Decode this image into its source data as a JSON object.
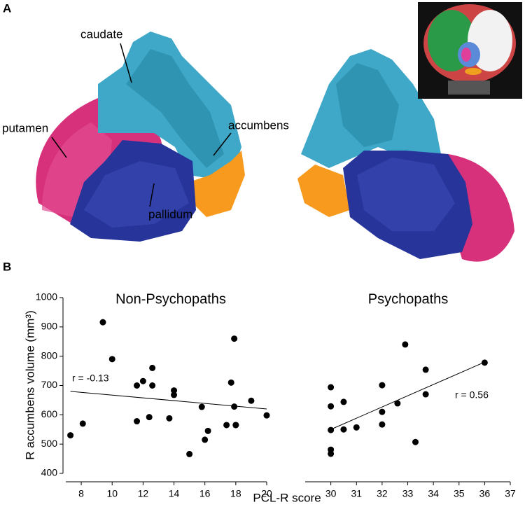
{
  "panels": {
    "A": {
      "label": "A",
      "annotations": [
        "caudate",
        "putamen",
        "accumbens",
        "pallidum"
      ]
    },
    "B": {
      "label": "B"
    }
  },
  "figure": {
    "y_label": "R accumbens volume (mm³)",
    "x_label": "PCL-R score"
  },
  "chart_data": [
    {
      "type": "scatter",
      "title": "Non-Psychopaths",
      "annotation": "r = -0.13",
      "color": "#000000",
      "x": [
        7.3,
        8.1,
        9.4,
        10,
        11.6,
        12.0,
        12.6,
        12.6,
        11.6,
        12.4,
        13.7,
        14.0,
        14.0,
        15.0,
        15.8,
        16.0,
        16.2,
        17.4,
        17.7,
        17.9,
        17.9,
        18.0,
        18.0,
        19.0,
        20.0
      ],
      "y": [
        530,
        570,
        916,
        790,
        700,
        715,
        700,
        760,
        578,
        592,
        588,
        683,
        668,
        466,
        627,
        515,
        545,
        565,
        710,
        860,
        628,
        565,
        565,
        648,
        598
      ],
      "fit": {
        "x": [
          7.3,
          20
        ],
        "y": [
          680,
          620
        ]
      },
      "xlim": [
        7,
        20
      ],
      "xticks": [
        8,
        10,
        12,
        14,
        16,
        18,
        20
      ],
      "ylim": [
        400,
        1000
      ],
      "yticks": [
        400,
        500,
        600,
        700,
        800,
        900,
        1000
      ]
    },
    {
      "type": "scatter",
      "title": "Psychopaths",
      "annotation": "r = 0.56",
      "color": "#000000",
      "x": [
        30,
        30,
        30,
        30,
        30,
        30.5,
        30.5,
        31,
        32,
        32,
        32,
        32.6,
        32.9,
        33.3,
        33.7,
        33.7,
        36
      ],
      "y": [
        694,
        629,
        548,
        481,
        467,
        644,
        550,
        557,
        701,
        610,
        567,
        639,
        840,
        507,
        754,
        670,
        778
      ],
      "fit": {
        "x": [
          30,
          36
        ],
        "y": [
          550,
          780
        ]
      },
      "xlim": [
        29,
        37
      ],
      "xticks": [
        30,
        31,
        32,
        33,
        34,
        35,
        36,
        37
      ],
      "ylim": [
        400,
        1000
      ]
    }
  ]
}
